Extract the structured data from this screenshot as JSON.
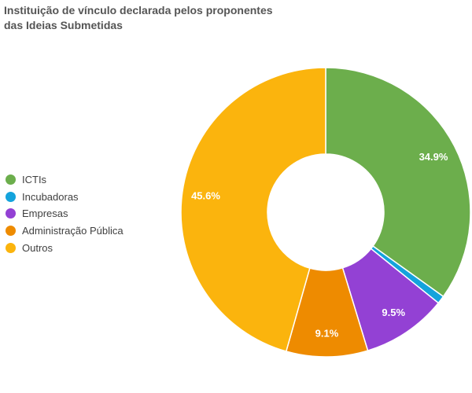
{
  "title": {
    "text": "Instituição de vínculo declarada pelos proponentes das Ideias Submetidas",
    "line1": "Instituição de vínculo declarada pelos proponentes",
    "line2": "das Ideias Submetidas"
  },
  "legend": {
    "position": "left",
    "items": [
      {
        "label": "ICTIs",
        "color": "#6cae4c"
      },
      {
        "label": "Incubadoras",
        "color": "#14a3dc"
      },
      {
        "label": "Empresas",
        "color": "#9341d4"
      },
      {
        "label": "Administração Pública",
        "color": "#ee8b00"
      },
      {
        "label": "Outros",
        "color": "#fbb40d"
      }
    ]
  },
  "chart_data": {
    "type": "pie",
    "subtype": "donut",
    "title": "Instituição de vínculo declarada pelos proponentes das Ideias Submetidas",
    "categories": [
      "ICTIs",
      "Incubadoras",
      "Empresas",
      "Administração Pública",
      "Outros"
    ],
    "values": [
      34.9,
      0.9,
      9.5,
      9.1,
      45.6
    ],
    "unit": "%",
    "slice_labels": [
      "34.9%",
      "",
      "9.5%",
      "9.1%",
      "45.6%"
    ],
    "colors": [
      "#6cae4c",
      "#14a3dc",
      "#9341d4",
      "#ee8b00",
      "#fbb40d"
    ],
    "start_angle_deg": 0,
    "direction": "clockwise",
    "inner_radius_ratio": 0.4,
    "legend_position": "left",
    "background": "#ffffff",
    "label_color": "#ffffff",
    "slice_border_color": "#ffffff"
  }
}
